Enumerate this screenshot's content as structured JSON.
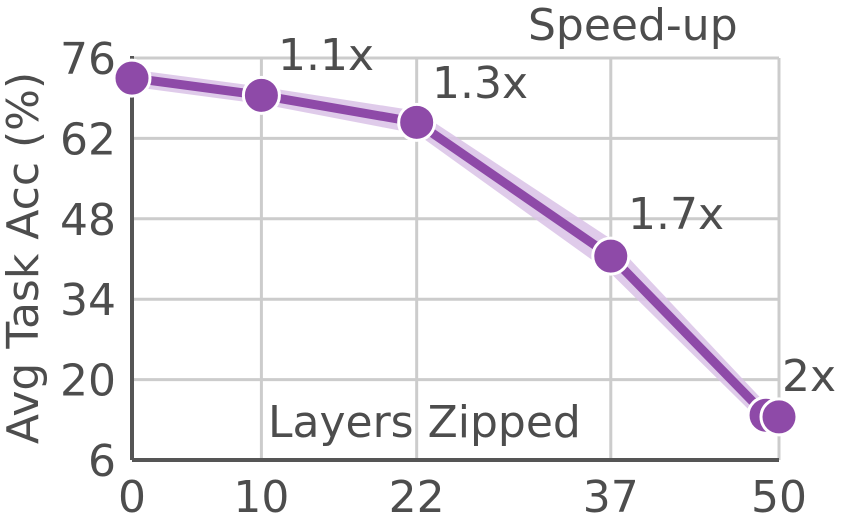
{
  "chart_data": {
    "type": "line",
    "x": [
      0,
      10,
      22,
      37,
      49,
      50
    ],
    "y": [
      72.5,
      69.5,
      64.8,
      41.5,
      13.8,
      13.5
    ],
    "xticks": [
      0,
      10,
      22,
      37,
      50
    ],
    "yticks": [
      6,
      20,
      34,
      48,
      62,
      76
    ],
    "xlim": [
      0,
      50
    ],
    "ylim": [
      6,
      76
    ],
    "xlabel": "Layers Zipped",
    "ylabel": "Avg Task Acc (%)",
    "annotation_title": "Speed-up",
    "annotations": [
      {
        "x": 10,
        "text": "1.1x"
      },
      {
        "x": 22,
        "text": "1.3x"
      },
      {
        "x": 37,
        "text": "1.7x"
      },
      {
        "x": 50,
        "text": "2x"
      }
    ],
    "grid": true,
    "color": "#8e4aa8",
    "band_color": "#d9c2e6"
  }
}
